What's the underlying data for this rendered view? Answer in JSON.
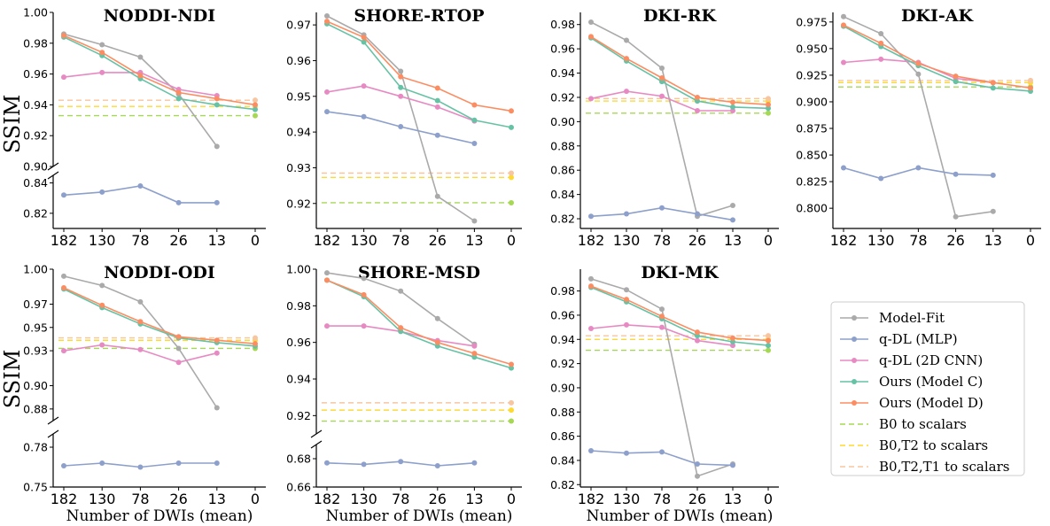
{
  "figure": {
    "ylabel": "SSIM",
    "xlabel": "Number of DWIs (mean)"
  },
  "legend": {
    "entries": [
      {
        "label": "Model-Fit",
        "color": "#aaaaaa",
        "style": "marker-line"
      },
      {
        "label": "q-DL (MLP)",
        "color": "#8da0cb",
        "style": "marker-line"
      },
      {
        "label": "q-DL (2D CNN)",
        "color": "#e78ac3",
        "style": "marker-line"
      },
      {
        "label": "Ours (Model C)",
        "color": "#66c2a5",
        "style": "marker-line"
      },
      {
        "label": "Ours (Model D)",
        "color": "#fc8d62",
        "style": "marker-line"
      },
      {
        "label": "B0 to scalars",
        "color": "#a6d854",
        "style": "dashed"
      },
      {
        "label": "B0,T2 to scalars",
        "color": "#ffd92f",
        "style": "dashed"
      },
      {
        "label": "B0,T2,T1 to scalars",
        "color": "#f7c59f",
        "style": "dashed"
      }
    ]
  },
  "chart_data": [
    {
      "type": "line",
      "title": "NODDI-NDI",
      "categories": [
        "182",
        "130",
        "78",
        "26",
        "13",
        "0"
      ],
      "ylabel": "SSIM",
      "xlabel": "",
      "broken_axis": true,
      "upper_ylim": [
        0.9,
        1.0
      ],
      "upper_ticks": [
        "1.00",
        "0.98",
        "0.96",
        "0.94",
        "0.92",
        "0.90"
      ],
      "lower_ylim": [
        0.81,
        0.845
      ],
      "lower_ticks": [
        "0.84",
        "0.82"
      ],
      "series": [
        {
          "name": "Model-Fit",
          "values": [
            0.986,
            0.979,
            0.971,
            0.947,
            0.913,
            null
          ]
        },
        {
          "name": "q-DL (MLP)",
          "values": [
            0.832,
            0.834,
            0.838,
            0.827,
            0.827,
            null
          ]
        },
        {
          "name": "q-DL (2D CNN)",
          "values": [
            0.958,
            0.961,
            0.961,
            0.95,
            0.946,
            null
          ]
        },
        {
          "name": "Ours (Model C)",
          "values": [
            0.984,
            0.972,
            0.957,
            0.944,
            0.94,
            0.937
          ]
        },
        {
          "name": "Ours (Model D)",
          "values": [
            0.985,
            0.974,
            0.959,
            0.948,
            0.944,
            0.94
          ]
        }
      ],
      "baselines": [
        {
          "name": "B0 to scalars",
          "value": 0.933
        },
        {
          "name": "B0,T2 to scalars",
          "value": 0.939
        },
        {
          "name": "B0,T2,T1 to scalars",
          "value": 0.943
        }
      ]
    },
    {
      "type": "line",
      "title": "SHORE-RTOP",
      "categories": [
        "182",
        "130",
        "78",
        "26",
        "13",
        "0"
      ],
      "ylabel": "",
      "xlabel": "",
      "broken_axis": false,
      "ylim": [
        0.913,
        0.9735
      ],
      "ticks": [
        "0.97",
        "0.96",
        "0.95",
        "0.94",
        "0.93",
        "0.92"
      ],
      "series": [
        {
          "name": "Model-Fit",
          "values": [
            0.9725,
            0.9672,
            0.957,
            0.922,
            0.9151,
            null
          ]
        },
        {
          "name": "q-DL (MLP)",
          "values": [
            0.9457,
            0.9443,
            0.9415,
            0.9391,
            0.9368,
            null
          ]
        },
        {
          "name": "q-DL (2D CNN)",
          "values": [
            0.9512,
            0.9529,
            0.95,
            0.947,
            0.9431,
            null
          ]
        },
        {
          "name": "Ours (Model C)",
          "values": [
            0.9703,
            0.9652,
            0.9525,
            0.9488,
            0.9433,
            0.9413
          ]
        },
        {
          "name": "Ours (Model D)",
          "values": [
            0.971,
            0.9665,
            0.9555,
            0.9523,
            0.9476,
            0.9459
          ]
        }
      ],
      "baselines": [
        {
          "name": "B0 to scalars",
          "value": 0.9202
        },
        {
          "name": "B0,T2 to scalars",
          "value": 0.9273
        },
        {
          "name": "B0,T2,T1 to scalars",
          "value": 0.9285
        }
      ]
    },
    {
      "type": "line",
      "title": "DKI-RK",
      "categories": [
        "182",
        "130",
        "78",
        "26",
        "13",
        "0"
      ],
      "ylabel": "",
      "xlabel": "",
      "broken_axis": false,
      "ylim": [
        0.812,
        0.99
      ],
      "ticks": [
        "0.98",
        "0.96",
        "0.94",
        "0.92",
        "0.90",
        "0.88",
        "0.86",
        "0.84",
        "0.82"
      ],
      "series": [
        {
          "name": "Model-Fit",
          "values": [
            0.982,
            0.967,
            0.944,
            0.822,
            0.831,
            null
          ]
        },
        {
          "name": "q-DL (MLP)",
          "values": [
            0.822,
            0.824,
            0.829,
            0.824,
            0.819,
            null
          ]
        },
        {
          "name": "q-DL (2D CNN)",
          "values": [
            0.919,
            0.925,
            0.921,
            0.909,
            0.909,
            null
          ]
        },
        {
          "name": "Ours (Model C)",
          "values": [
            0.969,
            0.95,
            0.933,
            0.917,
            0.912,
            0.911
          ]
        },
        {
          "name": "Ours (Model D)",
          "values": [
            0.97,
            0.952,
            0.936,
            0.92,
            0.916,
            0.914
          ]
        }
      ],
      "baselines": [
        {
          "name": "B0 to scalars",
          "value": 0.907
        },
        {
          "name": "B0,T2 to scalars",
          "value": 0.917
        },
        {
          "name": "B0,T2,T1 to scalars",
          "value": 0.919
        }
      ]
    },
    {
      "type": "line",
      "title": "DKI-AK",
      "categories": [
        "182",
        "130",
        "78",
        "26",
        "13",
        "0"
      ],
      "ylabel": "",
      "xlabel": "",
      "broken_axis": false,
      "ylim": [
        0.781,
        0.984
      ],
      "ticks": [
        "0.975",
        "0.950",
        "0.925",
        "0.900",
        "0.875",
        "0.850",
        "0.825",
        "0.800"
      ],
      "series": [
        {
          "name": "Model-Fit",
          "values": [
            0.98,
            0.964,
            0.926,
            0.792,
            0.797,
            null
          ]
        },
        {
          "name": "q-DL (MLP)",
          "values": [
            0.838,
            0.828,
            0.838,
            0.832,
            0.831,
            null
          ]
        },
        {
          "name": "q-DL (2D CNN)",
          "values": [
            0.937,
            0.94,
            0.937,
            0.922,
            0.918,
            null
          ]
        },
        {
          "name": "Ours (Model C)",
          "values": [
            0.971,
            0.952,
            0.934,
            0.919,
            0.913,
            0.91
          ]
        },
        {
          "name": "Ours (Model D)",
          "values": [
            0.972,
            0.955,
            0.936,
            0.924,
            0.918,
            0.913
          ]
        }
      ],
      "baselines": [
        {
          "name": "B0 to scalars",
          "value": 0.914
        },
        {
          "name": "B0,T2 to scalars",
          "value": 0.918
        },
        {
          "name": "B0,T2,T1 to scalars",
          "value": 0.92
        }
      ]
    },
    {
      "type": "line",
      "title": "NODDI-ODI",
      "categories": [
        "182",
        "130",
        "78",
        "26",
        "13",
        "0"
      ],
      "ylabel": "SSIM",
      "xlabel": "Number of DWIs (mean)",
      "broken_axis": true,
      "upper_ylim": [
        0.87,
        1.0
      ],
      "upper_ticks": [
        "1.00",
        "0.97",
        "0.95",
        "0.93",
        "0.90",
        "0.88"
      ],
      "lower_ylim": [
        0.75,
        0.79
      ],
      "lower_ticks": [
        "0.78",
        "0.75"
      ],
      "series": [
        {
          "name": "Model-Fit",
          "values": [
            0.994,
            0.986,
            0.972,
            0.932,
            0.881,
            null
          ]
        },
        {
          "name": "q-DL (MLP)",
          "values": [
            0.766,
            0.768,
            0.765,
            0.768,
            0.768,
            null
          ]
        },
        {
          "name": "q-DL (2D CNN)",
          "values": [
            0.93,
            0.935,
            0.931,
            0.92,
            0.928,
            null
          ]
        },
        {
          "name": "Ours (Model C)",
          "values": [
            0.983,
            0.967,
            0.953,
            0.941,
            0.937,
            0.934
          ]
        },
        {
          "name": "Ours (Model D)",
          "values": [
            0.984,
            0.969,
            0.955,
            0.942,
            0.939,
            0.936
          ]
        }
      ],
      "baselines": [
        {
          "name": "B0 to scalars",
          "value": 0.932
        },
        {
          "name": "B0,T2 to scalars",
          "value": 0.939
        },
        {
          "name": "B0,T2,T1 to scalars",
          "value": 0.941
        }
      ]
    },
    {
      "type": "line",
      "title": "SHORE-MSD",
      "categories": [
        "182",
        "130",
        "78",
        "26",
        "13",
        "0"
      ],
      "ylabel": "",
      "xlabel": "Number of DWIs (mean)",
      "broken_axis": true,
      "upper_ylim": [
        0.91,
        1.0
      ],
      "upper_ticks": [
        "1.00",
        "0.98",
        "0.96",
        "0.94",
        "0.92"
      ],
      "lower_ylim": [
        0.66,
        0.69
      ],
      "lower_ticks": [
        "0.68",
        "0.66"
      ],
      "series": [
        {
          "name": "Model-Fit",
          "values": [
            0.998,
            0.995,
            0.988,
            0.973,
            0.959,
            null
          ]
        },
        {
          "name": "q-DL (MLP)",
          "values": [
            0.677,
            0.676,
            0.678,
            0.675,
            0.677,
            null
          ]
        },
        {
          "name": "q-DL (2D CNN)",
          "values": [
            0.969,
            0.969,
            0.966,
            0.961,
            0.958,
            null
          ]
        },
        {
          "name": "Ours (Model C)",
          "values": [
            0.994,
            0.985,
            0.966,
            0.958,
            0.952,
            0.946
          ]
        },
        {
          "name": "Ours (Model D)",
          "values": [
            0.994,
            0.986,
            0.968,
            0.96,
            0.954,
            0.948
          ]
        }
      ],
      "baselines": [
        {
          "name": "B0 to scalars",
          "value": 0.917
        },
        {
          "name": "B0,T2 to scalars",
          "value": 0.923
        },
        {
          "name": "B0,T2,T1 to scalars",
          "value": 0.927
        }
      ]
    },
    {
      "type": "line",
      "title": "DKI-MK",
      "categories": [
        "182",
        "130",
        "78",
        "26",
        "13",
        "0"
      ],
      "ylabel": "",
      "xlabel": "Number of DWIs (mean)",
      "broken_axis": false,
      "ylim": [
        0.818,
        0.998
      ],
      "ticks": [
        "0.98",
        "0.96",
        "0.94",
        "0.92",
        "0.90",
        "0.88",
        "0.86",
        "0.84",
        "0.82"
      ],
      "series": [
        {
          "name": "Model-Fit",
          "values": [
            0.99,
            0.981,
            0.965,
            0.827,
            0.837,
            null
          ]
        },
        {
          "name": "q-DL (MLP)",
          "values": [
            0.848,
            0.846,
            0.847,
            0.837,
            0.836,
            null
          ]
        },
        {
          "name": "q-DL (2D CNN)",
          "values": [
            0.949,
            0.952,
            0.95,
            0.939,
            0.935,
            null
          ]
        },
        {
          "name": "Ours (Model C)",
          "values": [
            0.983,
            0.971,
            0.957,
            0.943,
            0.938,
            0.935
          ]
        },
        {
          "name": "Ours (Model D)",
          "values": [
            0.984,
            0.973,
            0.959,
            0.946,
            0.941,
            0.939
          ]
        }
      ],
      "baselines": [
        {
          "name": "B0 to scalars",
          "value": 0.931
        },
        {
          "name": "B0,T2 to scalars",
          "value": 0.94
        },
        {
          "name": "B0,T2,T1 to scalars",
          "value": 0.943
        }
      ]
    }
  ]
}
